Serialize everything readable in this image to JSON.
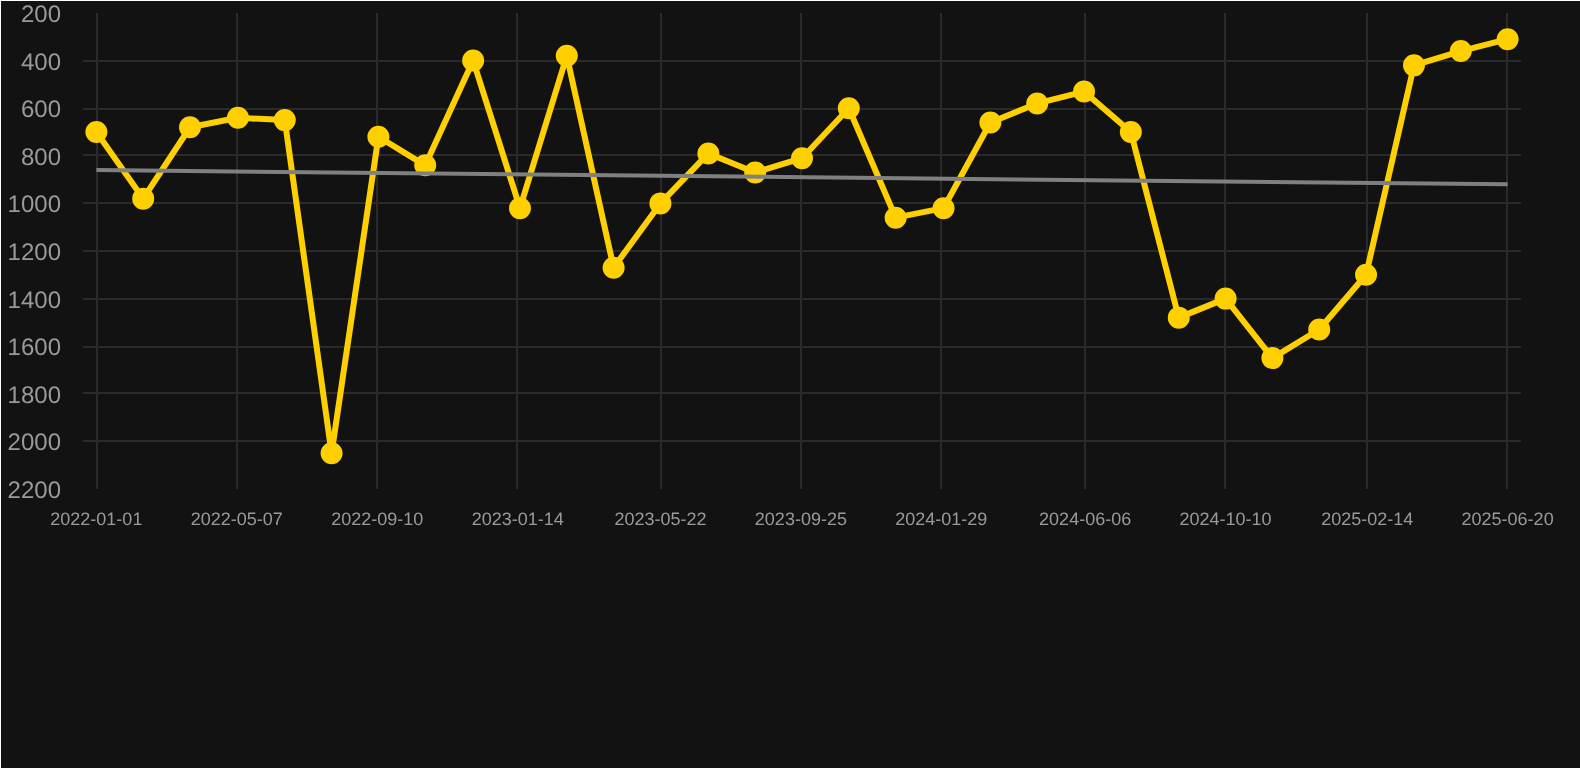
{
  "chart_data": {
    "type": "line",
    "x": [
      "2022-01-01",
      "2022-02-12",
      "2022-03-26",
      "2022-05-08",
      "2022-06-19",
      "2022-07-31",
      "2022-09-11",
      "2022-10-23",
      "2022-12-05",
      "2023-01-16",
      "2023-02-27",
      "2023-04-10",
      "2023-05-22",
      "2023-07-04",
      "2023-08-15",
      "2023-09-26",
      "2023-11-07",
      "2023-12-19",
      "2024-01-31",
      "2024-03-13",
      "2024-04-24",
      "2024-06-05",
      "2024-07-17",
      "2024-08-29",
      "2024-10-10",
      "2024-11-21",
      "2025-01-02",
      "2025-02-13",
      "2025-03-28",
      "2025-05-09",
      "2025-06-20"
    ],
    "series": [
      {
        "color": "#ffd000",
        "marker": "circle",
        "values": [
          700,
          980,
          680,
          640,
          650,
          2050,
          720,
          840,
          400,
          1020,
          380,
          1270,
          1000,
          790,
          870,
          810,
          600,
          1060,
          1020,
          660,
          580,
          530,
          700,
          1480,
          1400,
          1650,
          1530,
          1300,
          420,
          360,
          310
        ]
      },
      {
        "color": "#808080",
        "marker": "none",
        "x": [
          "2022-01-01",
          "2025-06-20"
        ],
        "values": [
          860,
          920
        ]
      }
    ],
    "xlim": [
      "2021-12-20",
      "2025-07-02"
    ],
    "xticks": [
      "2022-01-01",
      "2022-05-07",
      "2022-09-10",
      "2023-01-14",
      "2023-05-22",
      "2023-09-25",
      "2024-01-29",
      "2024-06-06",
      "2024-10-10",
      "2025-02-14",
      "2025-06-20"
    ],
    "ylim": [
      2200,
      200
    ],
    "yticks": [
      200,
      400,
      600,
      800,
      1000,
      1200,
      1400,
      1600,
      1800,
      2000,
      2200
    ],
    "grid": true
  }
}
